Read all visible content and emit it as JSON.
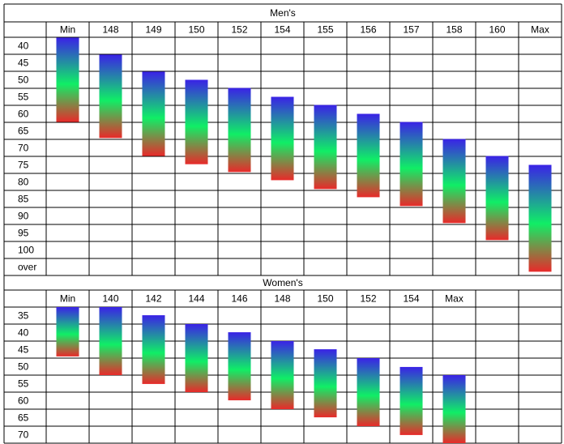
{
  "chart_data": [
    {
      "type": "range-bar",
      "title": "Men's",
      "categories": [
        "Min",
        "148",
        "149",
        "150",
        "152",
        "154",
        "155",
        "156",
        "157",
        "158",
        "160",
        "Max"
      ],
      "values": [
        [
          37.6,
          62.4
        ],
        [
          42.6,
          67.1
        ],
        [
          47.6,
          72.4
        ],
        [
          50,
          74.8
        ],
        [
          52.4,
          77.1
        ],
        [
          55,
          79.5
        ],
        [
          57.4,
          82.1
        ],
        [
          60,
          84.5
        ],
        [
          62.4,
          87.1
        ],
        [
          67.4,
          92.1
        ],
        [
          72.4,
          97.1
        ],
        [
          75,
          106.4
        ]
      ],
      "ylim": [
        37.5,
        107.5
      ],
      "yticks": [
        40,
        45,
        50,
        55,
        60,
        65,
        70,
        75,
        80,
        85,
        90,
        95,
        100,
        {
          "value": 105,
          "label": "over"
        }
      ],
      "colors": [
        "#3a22e6",
        "#10ee66",
        "#e82a2a"
      ]
    },
    {
      "type": "range-bar",
      "title": "Women's",
      "categories": [
        "Min",
        "140",
        "142",
        "144",
        "146",
        "148",
        "150",
        "152",
        "154",
        "Max"
      ],
      "values": [
        [
          32.5,
          47
        ],
        [
          32.5,
          52.5
        ],
        [
          34.9,
          55.1
        ],
        [
          37.5,
          57.5
        ],
        [
          39.9,
          59.9
        ],
        [
          42.5,
          62.5
        ],
        [
          44.9,
          64.9
        ],
        [
          47.5,
          67.5
        ],
        [
          50.1,
          70.1
        ],
        [
          52.5,
          72.5
        ]
      ],
      "ylim": [
        32.5,
        72.5
      ],
      "yticks": [
        35,
        40,
        45,
        50,
        55,
        60,
        65,
        70
      ],
      "colors": [
        "#3a22e6",
        "#10ee66",
        "#e82a2a"
      ]
    }
  ]
}
